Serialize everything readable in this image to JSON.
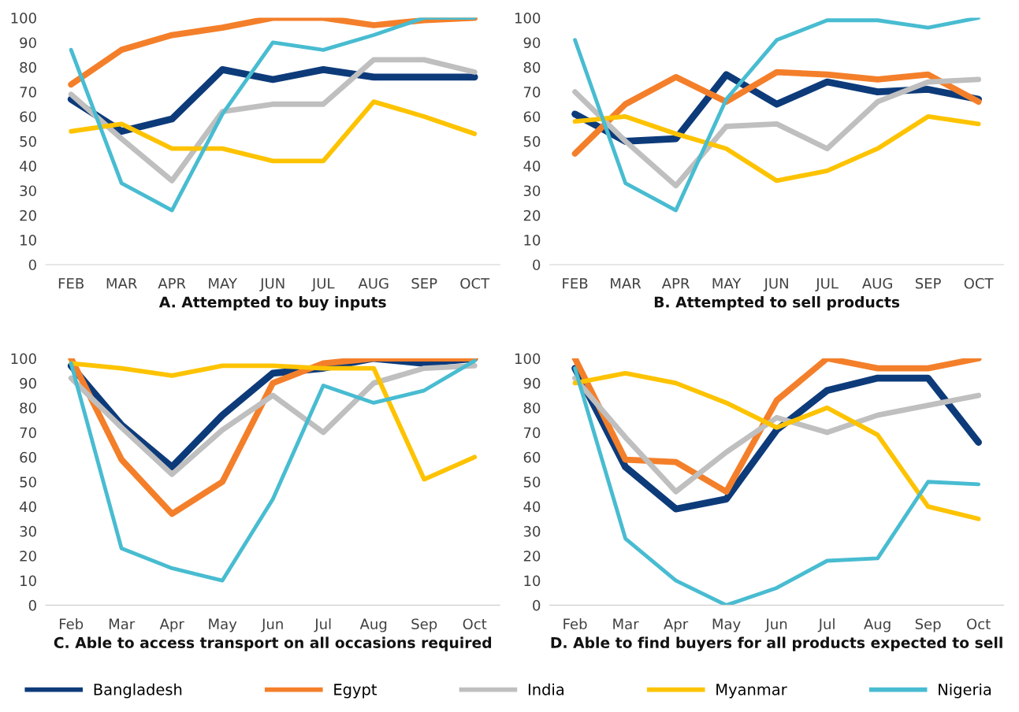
{
  "chart_data": [
    {
      "type": "line",
      "title": "A. Attempted to buy inputs",
      "categories": [
        "FEB",
        "MAR",
        "APR",
        "MAY",
        "JUN",
        "JUL",
        "AUG",
        "SEP",
        "OCT"
      ],
      "ylim": [
        0,
        100
      ],
      "yticks": [
        0,
        10,
        20,
        30,
        40,
        50,
        60,
        70,
        80,
        90,
        100
      ],
      "grid": false,
      "legend": "bottom",
      "series": [
        {
          "name": "Bangladesh",
          "color": "#0d3b7a",
          "values": [
            67,
            54,
            59,
            79,
            75,
            79,
            76,
            76,
            76
          ]
        },
        {
          "name": "Egypt",
          "color": "#f47f2a",
          "values": [
            73,
            87,
            93,
            96,
            100,
            100,
            97,
            99,
            100
          ]
        },
        {
          "name": "India",
          "color": "#bfbfbf",
          "values": [
            69,
            51,
            34,
            62,
            65,
            65,
            83,
            83,
            78
          ]
        },
        {
          "name": "Myanmar",
          "color": "#fdc300",
          "values": [
            54,
            57,
            47,
            47,
            42,
            42,
            66,
            60,
            53
          ]
        },
        {
          "name": "Nigeria",
          "color": "#48bcd1",
          "values": [
            87,
            33,
            22,
            61,
            90,
            87,
            93,
            100,
            100
          ]
        }
      ]
    },
    {
      "type": "line",
      "title": "B. Attempted to sell products",
      "categories": [
        "FEB",
        "MAR",
        "APR",
        "MAY",
        "JUN",
        "JUL",
        "AUG",
        "SEP",
        "OCT"
      ],
      "ylim": [
        0,
        100
      ],
      "yticks": [
        0,
        10,
        20,
        30,
        40,
        50,
        60,
        70,
        80,
        90,
        100
      ],
      "grid": false,
      "legend": "bottom",
      "series": [
        {
          "name": "Bangladesh",
          "color": "#0d3b7a",
          "values": [
            61,
            50,
            51,
            77,
            65,
            74,
            70,
            71,
            67
          ]
        },
        {
          "name": "Egypt",
          "color": "#f47f2a",
          "values": [
            45,
            65,
            76,
            66,
            78,
            77,
            75,
            77,
            66
          ]
        },
        {
          "name": "India",
          "color": "#bfbfbf",
          "values": [
            70,
            50,
            32,
            56,
            57,
            47,
            66,
            74,
            75
          ]
        },
        {
          "name": "Myanmar",
          "color": "#fdc300",
          "values": [
            58,
            60,
            53,
            47,
            34,
            38,
            47,
            60,
            57
          ]
        },
        {
          "name": "Nigeria",
          "color": "#48bcd1",
          "values": [
            91,
            33,
            22,
            67,
            91,
            99,
            99,
            96,
            100
          ]
        }
      ]
    },
    {
      "type": "line",
      "title": "C. Able to access transport on all occasions required",
      "categories": [
        "Feb",
        "Mar",
        "Apr",
        "May",
        "Jun",
        "Jul",
        "Aug",
        "Sep",
        "Oct"
      ],
      "ylim": [
        0,
        100
      ],
      "yticks": [
        0,
        10,
        20,
        30,
        40,
        50,
        60,
        70,
        80,
        90,
        100
      ],
      "grid": false,
      "legend": "bottom",
      "series": [
        {
          "name": "Bangladesh",
          "color": "#0d3b7a",
          "values": [
            97,
            73,
            56,
            77,
            94,
            96,
            100,
            98,
            100
          ]
        },
        {
          "name": "Egypt",
          "color": "#f47f2a",
          "values": [
            100,
            59,
            37,
            50,
            90,
            98,
            100,
            100,
            100
          ]
        },
        {
          "name": "India",
          "color": "#bfbfbf",
          "values": [
            92,
            72,
            53,
            71,
            85,
            70,
            90,
            96,
            97
          ]
        },
        {
          "name": "Myanmar",
          "color": "#fdc300",
          "values": [
            98,
            96,
            93,
            97,
            97,
            96,
            96,
            51,
            60
          ]
        },
        {
          "name": "Nigeria",
          "color": "#48bcd1",
          "values": [
            98,
            23,
            15,
            10,
            43,
            89,
            82,
            87,
            99
          ]
        }
      ]
    },
    {
      "type": "line",
      "title": "D. Able to find buyers for all products expected to sell",
      "categories": [
        "Feb",
        "Mar",
        "Apr",
        "May",
        "Jun",
        "Jul",
        "Aug",
        "Sep",
        "Oct"
      ],
      "ylim": [
        0,
        100
      ],
      "yticks": [
        0,
        10,
        20,
        30,
        40,
        50,
        60,
        70,
        80,
        90,
        100
      ],
      "grid": false,
      "legend": "bottom",
      "series": [
        {
          "name": "Bangladesh",
          "color": "#0d3b7a",
          "values": [
            96,
            56,
            39,
            43,
            71,
            87,
            92,
            92,
            66
          ]
        },
        {
          "name": "Egypt",
          "color": "#f47f2a",
          "values": [
            100,
            59,
            58,
            46,
            83,
            100,
            96,
            96,
            100
          ]
        },
        {
          "name": "India",
          "color": "#bfbfbf",
          "values": [
            92,
            68,
            46,
            62,
            76,
            70,
            77,
            81,
            85
          ]
        },
        {
          "name": "Myanmar",
          "color": "#fdc300",
          "values": [
            90,
            94,
            90,
            82,
            72,
            80,
            69,
            40,
            35
          ]
        },
        {
          "name": "Nigeria",
          "color": "#48bcd1",
          "values": [
            96,
            27,
            10,
            0,
            7,
            18,
            19,
            50,
            49
          ]
        }
      ]
    }
  ]
}
